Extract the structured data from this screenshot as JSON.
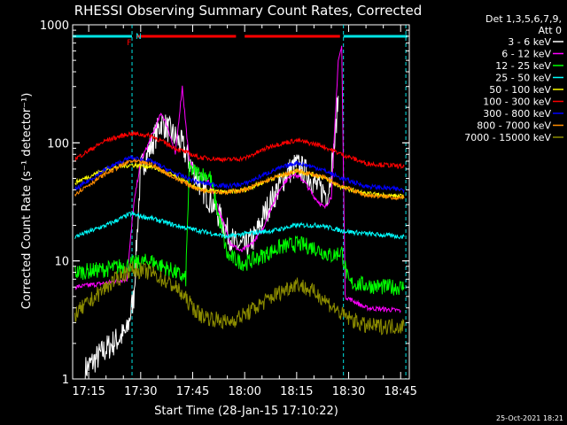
{
  "chart_data": {
    "type": "line",
    "title": "RHESSI Observing Summary Count Rates, Corrected",
    "xlabel": "Start Time (28-Jan-15 17:10:22)",
    "ylabel": "Corrected Count Rate (s⁻¹ detector⁻¹)",
    "y_scale": "log",
    "ylim": [
      1,
      1000
    ],
    "xlim": [
      "17:10:22",
      "18:47:30"
    ],
    "x_ticks": [
      "17:15",
      "17:30",
      "17:45",
      "18:00",
      "18:15",
      "18:30",
      "18:45"
    ],
    "y_ticks": [
      "1",
      "10",
      "100",
      "1000"
    ],
    "legend_header": [
      "Det 1,3,5,6,7,9,",
      "Att 0"
    ],
    "legend_position": "right",
    "footer_date": "25-Oct-2021 18:21",
    "flags": {
      "F": {
        "label": "F",
        "color": "#ff0000"
      },
      "N": {
        "label": "N",
        "color": "#00e5e5"
      },
      "segments": [
        {
          "flag": "N",
          "color": "#00e5e5",
          "x": [
            "17:10:22",
            "17:27:30"
          ]
        },
        {
          "flag": "F",
          "color": "#ff0000",
          "x": [
            "17:29:00",
            "17:57:30"
          ]
        },
        {
          "flag": "F",
          "color": "#ff0000",
          "x": [
            "18:00:00",
            "18:27:30"
          ]
        },
        {
          "flag": "N",
          "color": "#00e5e5",
          "x": [
            "18:28:30",
            "18:47:00"
          ]
        }
      ]
    },
    "night_boundaries": [
      "17:27:30",
      "18:28:30",
      "18:46:30"
    ],
    "series": [
      {
        "name": "3 - 6 keV",
        "color": "#ffffff",
        "points": [
          [
            "17:14",
            1.2
          ],
          [
            "17:20",
            1.8
          ],
          [
            "17:26",
            2.5
          ],
          [
            "17:28",
            5
          ],
          [
            "17:30",
            60
          ],
          [
            "17:33",
            95
          ],
          [
            "17:36",
            150
          ],
          [
            "17:39",
            120
          ],
          [
            "17:42",
            95
          ],
          [
            "17:45",
            60
          ],
          [
            "17:48",
            40
          ],
          [
            "17:51",
            30
          ],
          [
            "17:54",
            20
          ],
          [
            "17:57",
            14
          ],
          [
            "18:00",
            13
          ],
          [
            "18:03",
            16
          ],
          [
            "18:06",
            26
          ],
          [
            "18:09",
            38
          ],
          [
            "18:12",
            55
          ],
          [
            "18:15",
            65
          ],
          [
            "18:18",
            55
          ],
          [
            "18:21",
            42
          ],
          [
            "18:24",
            37
          ],
          [
            "18:26",
            100
          ],
          [
            "18:27",
            250
          ]
        ]
      },
      {
        "name": "6 - 12 keV",
        "color": "#ff00ff",
        "points": [
          [
            "17:11",
            6
          ],
          [
            "17:20",
            6.5
          ],
          [
            "17:26",
            7
          ],
          [
            "17:28",
            30
          ],
          [
            "17:30",
            70
          ],
          [
            "17:33",
            110
          ],
          [
            "17:36",
            180
          ],
          [
            "17:38",
            130
          ],
          [
            "17:40",
            80
          ],
          [
            "17:42",
            300
          ],
          [
            "17:44",
            70
          ],
          [
            "17:47",
            55
          ],
          [
            "17:50",
            45
          ],
          [
            "17:53",
            25
          ],
          [
            "17:56",
            14
          ],
          [
            "17:59",
            12
          ],
          [
            "18:02",
            14
          ],
          [
            "18:05",
            18
          ],
          [
            "18:08",
            30
          ],
          [
            "18:11",
            45
          ],
          [
            "18:14",
            55
          ],
          [
            "18:17",
            48
          ],
          [
            "18:20",
            35
          ],
          [
            "18:23",
            28
          ],
          [
            "18:25",
            35
          ],
          [
            "18:27",
            500
          ],
          [
            "18:28",
            650
          ],
          [
            "18:29",
            5
          ],
          [
            "18:35",
            4
          ],
          [
            "18:45",
            3.8
          ]
        ]
      },
      {
        "name": "12 - 25 keV",
        "color": "#00ff00",
        "points": [
          [
            "17:11",
            8
          ],
          [
            "17:20",
            8.5
          ],
          [
            "17:28",
            9.5
          ],
          [
            "17:33",
            10
          ],
          [
            "17:40",
            8
          ],
          [
            "17:43",
            7
          ],
          [
            "17:44",
            60
          ],
          [
            "17:47",
            55
          ],
          [
            "17:50",
            52
          ],
          [
            "17:55",
            11
          ],
          [
            "18:00",
            9.5
          ],
          [
            "18:05",
            11
          ],
          [
            "18:10",
            13
          ],
          [
            "18:15",
            14
          ],
          [
            "18:20",
            13
          ],
          [
            "18:25",
            11
          ],
          [
            "18:28",
            12
          ],
          [
            "18:30",
            6.5
          ],
          [
            "18:40",
            6
          ],
          [
            "18:46",
            6
          ]
        ]
      },
      {
        "name": "25 - 50 keV",
        "color": "#00ffff",
        "points": [
          [
            "17:11",
            16
          ],
          [
            "17:20",
            20
          ],
          [
            "17:27",
            25
          ],
          [
            "17:33",
            23
          ],
          [
            "17:40",
            20
          ],
          [
            "17:47",
            18
          ],
          [
            "17:55",
            16
          ],
          [
            "18:00",
            17
          ],
          [
            "18:08",
            18
          ],
          [
            "18:15",
            20
          ],
          [
            "18:22",
            20
          ],
          [
            "18:28",
            18
          ],
          [
            "18:35",
            17
          ],
          [
            "18:46",
            16
          ]
        ]
      },
      {
        "name": "50 - 100 keV",
        "color": "#ffff00",
        "points": [
          [
            "17:11",
            46
          ],
          [
            "17:20",
            60
          ],
          [
            "17:27",
            65
          ],
          [
            "17:33",
            63
          ],
          [
            "17:40",
            52
          ],
          [
            "17:47",
            40
          ],
          [
            "17:55",
            38
          ],
          [
            "18:00",
            40
          ],
          [
            "18:08",
            50
          ],
          [
            "18:15",
            58
          ],
          [
            "18:22",
            52
          ],
          [
            "18:28",
            42
          ],
          [
            "18:35",
            37
          ],
          [
            "18:46",
            35
          ]
        ]
      },
      {
        "name": "100 - 300 keV",
        "color": "#ff0000",
        "points": [
          [
            "17:11",
            73
          ],
          [
            "17:20",
            105
          ],
          [
            "17:27",
            120
          ],
          [
            "17:33",
            115
          ],
          [
            "17:40",
            90
          ],
          [
            "17:47",
            75
          ],
          [
            "17:55",
            72
          ],
          [
            "18:00",
            74
          ],
          [
            "18:08",
            95
          ],
          [
            "18:15",
            105
          ],
          [
            "18:22",
            95
          ],
          [
            "18:28",
            80
          ],
          [
            "18:35",
            67
          ],
          [
            "18:46",
            63
          ]
        ]
      },
      {
        "name": "300 - 800 keV",
        "color": "#0000ff",
        "points": [
          [
            "17:11",
            40
          ],
          [
            "17:20",
            60
          ],
          [
            "17:27",
            75
          ],
          [
            "17:33",
            70
          ],
          [
            "17:40",
            55
          ],
          [
            "17:47",
            46
          ],
          [
            "17:55",
            43
          ],
          [
            "18:00",
            45
          ],
          [
            "18:08",
            58
          ],
          [
            "18:15",
            68
          ],
          [
            "18:22",
            60
          ],
          [
            "18:28",
            50
          ],
          [
            "18:35",
            43
          ],
          [
            "18:46",
            40
          ]
        ]
      },
      {
        "name": "800 - 7000 keV",
        "color": "#ff8c00",
        "points": [
          [
            "17:11",
            37
          ],
          [
            "17:20",
            55
          ],
          [
            "17:27",
            70
          ],
          [
            "17:33",
            66
          ],
          [
            "17:40",
            50
          ],
          [
            "17:47",
            40
          ],
          [
            "17:55",
            38
          ],
          [
            "18:00",
            40
          ],
          [
            "18:08",
            50
          ],
          [
            "18:15",
            58
          ],
          [
            "18:22",
            52
          ],
          [
            "18:28",
            43
          ],
          [
            "18:35",
            36
          ],
          [
            "18:46",
            34
          ]
        ]
      },
      {
        "name": "7000 - 15000 keV",
        "color": "#8b8b00",
        "points": [
          [
            "17:11",
            3.5
          ],
          [
            "17:20",
            6
          ],
          [
            "17:27",
            8.5
          ],
          [
            "17:33",
            8
          ],
          [
            "17:40",
            6
          ],
          [
            "17:47",
            3.5
          ],
          [
            "17:55",
            3
          ],
          [
            "18:00",
            3.5
          ],
          [
            "18:08",
            5
          ],
          [
            "18:15",
            6.5
          ],
          [
            "18:22",
            5
          ],
          [
            "18:28",
            3.5
          ],
          [
            "18:35",
            2.8
          ],
          [
            "18:46",
            2.8
          ]
        ]
      }
    ]
  }
}
